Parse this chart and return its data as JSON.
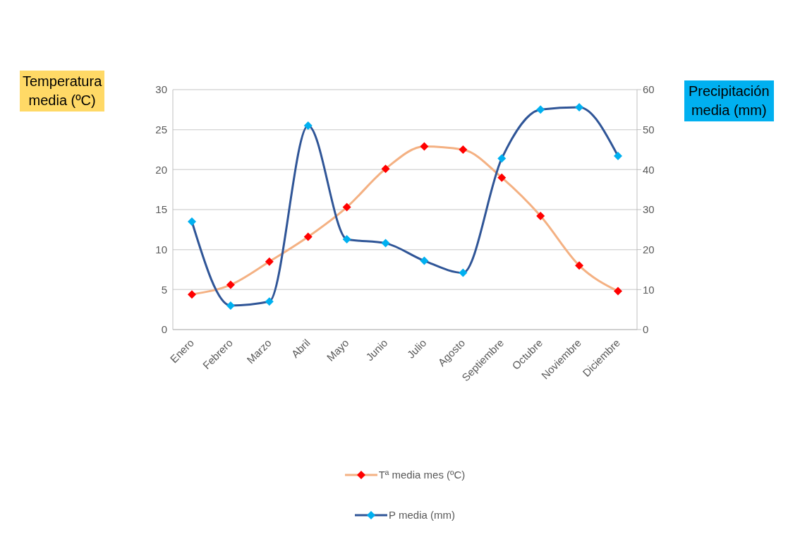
{
  "chart_data": {
    "type": "line",
    "categories": [
      "Enero",
      "Febrero",
      "Marzo",
      "Abril",
      "Mayo",
      "Junio",
      "Julio",
      "Agosto",
      "Septiembre",
      "Octubre",
      "Noviembre",
      "Diciembre"
    ],
    "ylabel": "Temperatura media (ºC)",
    "y2label": "Precipitación media (mm)",
    "ylim": [
      0,
      30
    ],
    "yticks": [
      0,
      5,
      10,
      15,
      20,
      25,
      30
    ],
    "y2lim": [
      0,
      60
    ],
    "y2ticks": [
      0,
      10,
      20,
      30,
      40,
      50,
      60
    ],
    "grid": "y",
    "legend": "bottom",
    "marker": "diamond",
    "line_style": "solid",
    "series": [
      {
        "name": "Tª media mes (ºC)",
        "color": "#f4b183",
        "colors": [
          "#ff0000",
          "#ff0000",
          "#ff0000",
          "#ff0000",
          "#ff0000",
          "#ff0000",
          "#ff0000",
          "#ff0000",
          "#ff0000",
          "#ff0000",
          "#ff0000",
          "#ff0000"
        ],
        "values": [
          4.4,
          5.6,
          8.5,
          11.6,
          15.3,
          20.1,
          22.9,
          22.5,
          19.0,
          14.2,
          8.0,
          4.8
        ]
      },
      {
        "name": "P media (mm)",
        "axis": "y2",
        "color": "#2f5597",
        "colors": [
          "#00b0f0",
          "#00b0f0",
          "#00b0f0",
          "#00b0f0",
          "#00b0f0",
          "#00b0f0",
          "#00b0f0",
          "#00b0f0",
          "#00b0f0",
          "#00b0f0",
          "#00b0f0",
          "#00b0f0"
        ],
        "values": [
          27,
          6,
          7,
          51,
          22.6,
          21.6,
          17.2,
          14.2,
          42.8,
          55,
          55.6,
          43.4
        ]
      }
    ]
  }
}
